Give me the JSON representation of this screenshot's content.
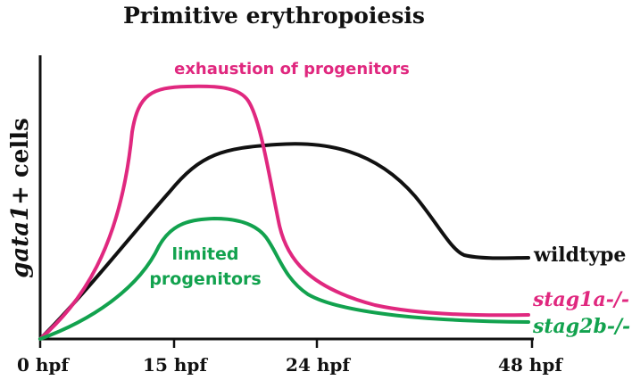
{
  "chart_data": {
    "type": "line",
    "title": "Primitive erythropoiesis",
    "ylabel_italic": "gata1",
    "ylabel_rest": "+ cells",
    "x_ticks": [
      "0 hpf",
      "15 hpf",
      "24 hpf",
      "48 hpf"
    ],
    "series": [
      {
        "name": "wildtype",
        "italic": false,
        "color": "#111111"
      },
      {
        "name": "stag1a-/-",
        "italic": true,
        "color": "#e0287f"
      },
      {
        "name": "stag2b-/-",
        "italic": true,
        "color": "#12a24e"
      }
    ],
    "annotations": [
      {
        "text": "exhaustion of progenitors",
        "color": "#e0287f"
      },
      {
        "lines": [
          "limited",
          "progenitors"
        ],
        "color": "#12a24e"
      }
    ]
  }
}
